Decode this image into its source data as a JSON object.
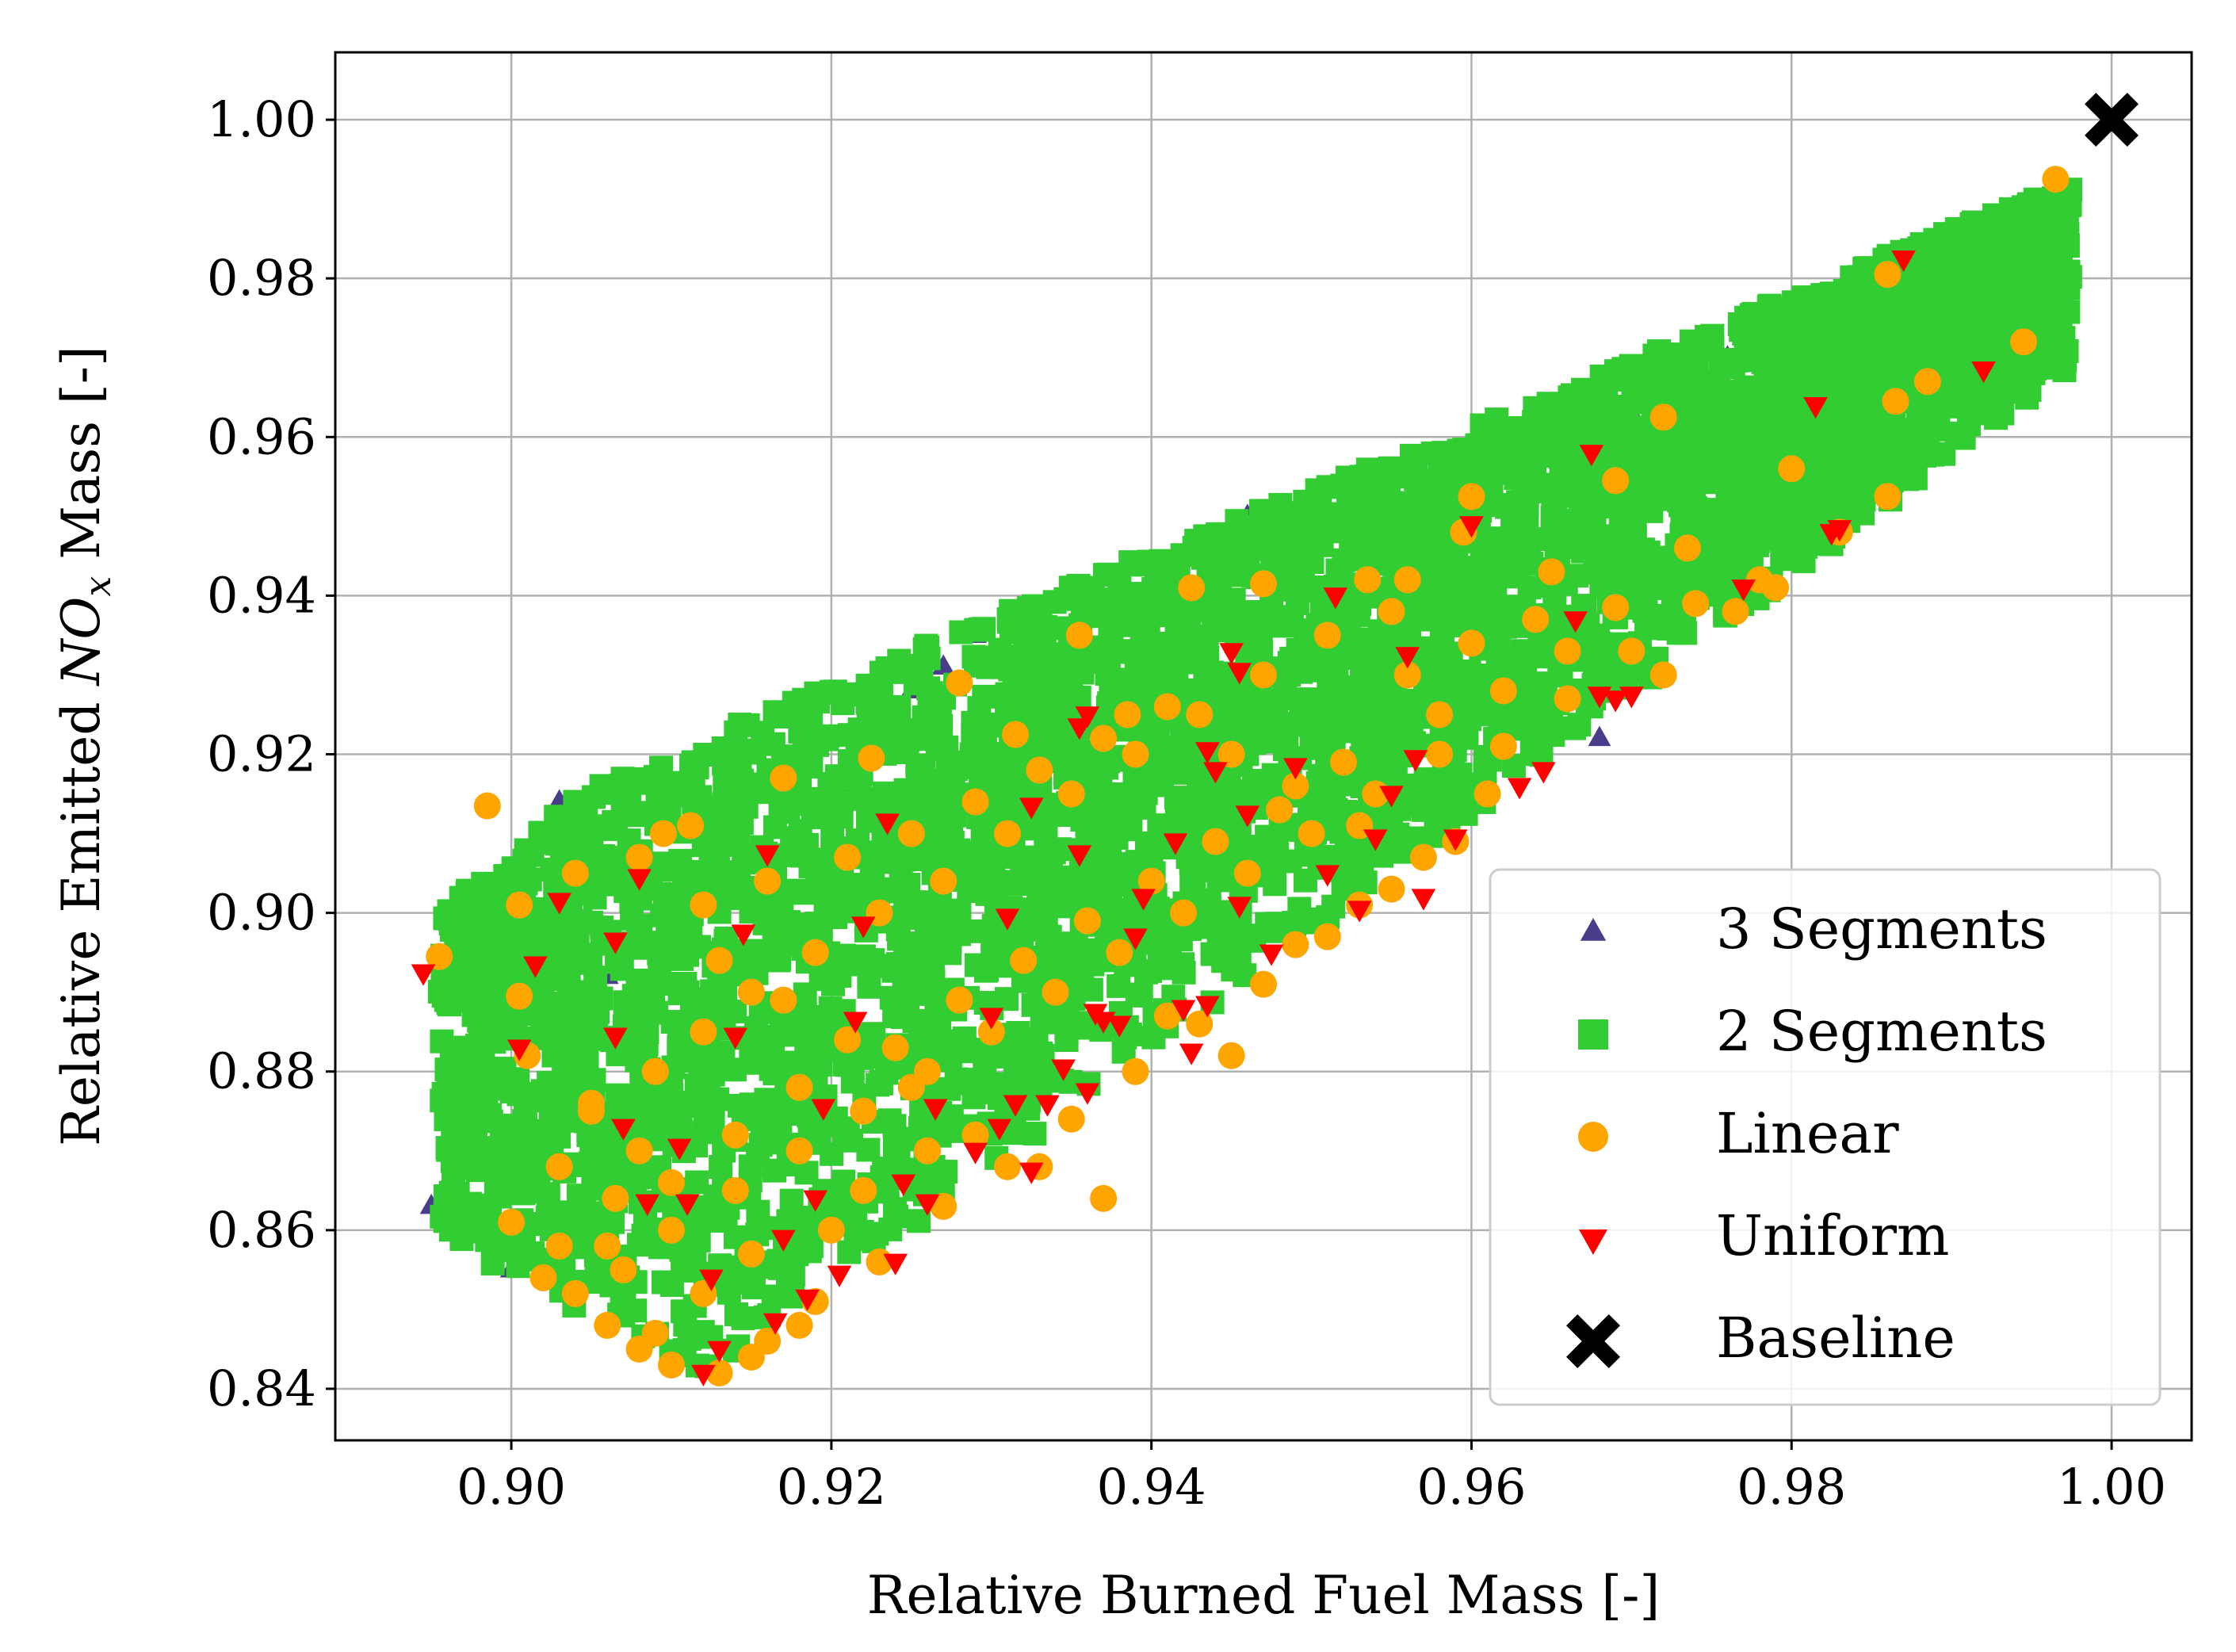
{
  "chart_data": {
    "type": "scatter",
    "title": "",
    "xlabel": "Relative Burned Fuel Mass [-]",
    "ylabel_parts": {
      "pre": "Relative Emitted ",
      "sym": "NO",
      "sub": "x",
      "post": " Mass [-]"
    },
    "xlim": [
      0.889,
      1.005
    ],
    "ylim": [
      0.8335,
      1.0085
    ],
    "xticks": [
      0.9,
      0.92,
      0.94,
      0.96,
      0.98,
      1.0
    ],
    "yticks": [
      0.84,
      0.86,
      0.88,
      0.9,
      0.92,
      0.94,
      0.96,
      0.98,
      1.0
    ],
    "xtick_labels": [
      "0.90",
      "0.92",
      "0.94",
      "0.96",
      "0.98",
      "1.00"
    ],
    "ytick_labels": [
      "0.84",
      "0.86",
      "0.88",
      "0.90",
      "0.92",
      "0.94",
      "0.96",
      "0.98",
      "1.00"
    ],
    "grid": true,
    "legend_position": "lower-right",
    "series": [
      {
        "name": "3 Segments",
        "marker": "triangle-up",
        "color": "#483d8b",
        "points": [
          [
            0.895,
            0.863
          ],
          [
            0.896,
            0.866
          ],
          [
            0.899,
            0.861
          ],
          [
            0.9,
            0.855
          ],
          [
            0.903,
            0.914
          ],
          [
            0.905,
            0.905
          ],
          [
            0.906,
            0.892
          ],
          [
            0.908,
            0.846
          ],
          [
            0.914,
            0.922
          ],
          [
            0.917,
            0.915
          ],
          [
            0.925,
            0.928
          ],
          [
            0.927,
            0.931
          ],
          [
            0.929,
            0.935
          ],
          [
            0.933,
            0.936
          ],
          [
            0.939,
            0.94
          ],
          [
            0.944,
            0.944
          ],
          [
            0.948,
            0.948
          ],
          [
            0.953,
            0.95
          ],
          [
            0.957,
            0.952
          ],
          [
            0.962,
            0.956
          ],
          [
            0.966,
            0.961
          ],
          [
            0.97,
            0.963
          ],
          [
            0.974,
            0.955
          ],
          [
            0.977,
            0.957
          ],
          [
            0.981,
            0.963
          ],
          [
            0.983,
            0.961
          ],
          [
            0.986,
            0.975
          ],
          [
            0.988,
            0.965
          ],
          [
            0.992,
            0.968
          ],
          [
            0.985,
            0.978
          ],
          [
            0.968,
            0.922
          ],
          [
            0.946,
            0.95
          ],
          [
            0.937,
            0.938
          ],
          [
            0.976,
            0.97
          ],
          [
            0.96,
            0.958
          ]
        ]
      },
      {
        "name": "2 Segments",
        "marker": "square",
        "color": "#32cd32",
        "points": []
      },
      {
        "name": "Linear",
        "marker": "circle",
        "color": "#ffa500",
        "points": [
          [
            0.8985,
            0.9135
          ],
          [
            0.8955,
            0.8945
          ],
          [
            0.9005,
            0.8895
          ],
          [
            0.905,
            0.876
          ],
          [
            0.9095,
            0.91
          ],
          [
            0.9112,
            0.911
          ],
          [
            0.917,
            0.917
          ],
          [
            0.9225,
            0.9195
          ],
          [
            0.928,
            0.929
          ],
          [
            0.9315,
            0.9225
          ],
          [
            0.9355,
            0.935
          ],
          [
            0.9385,
            0.925
          ],
          [
            0.9425,
            0.941
          ],
          [
            0.947,
            0.9415
          ],
          [
            0.9535,
            0.942
          ],
          [
            0.956,
            0.942
          ],
          [
            0.96,
            0.9525
          ],
          [
            0.9595,
            0.948
          ],
          [
            0.965,
            0.943
          ],
          [
            0.969,
            0.9545
          ],
          [
            0.972,
            0.9625
          ],
          [
            0.9735,
            0.946
          ],
          [
            0.979,
            0.941
          ],
          [
            0.98,
            0.956
          ],
          [
            0.986,
            0.9805
          ],
          [
            0.9865,
            0.9645
          ],
          [
            0.9885,
            0.967
          ],
          [
            0.9945,
            0.972
          ],
          [
            0.9965,
            0.9925
          ],
          [
            0.986,
            0.9525
          ],
          [
            0.983,
            0.948
          ],
          [
            0.969,
            0.9385
          ],
          [
            0.972,
            0.93
          ],
          [
            0.9765,
            0.938
          ],
          [
            0.966,
            0.933
          ],
          [
            0.962,
            0.928
          ],
          [
            0.958,
            0.92
          ],
          [
            0.954,
            0.915
          ],
          [
            0.95,
            0.91
          ],
          [
            0.946,
            0.905
          ],
          [
            0.942,
            0.9
          ],
          [
            0.938,
            0.895
          ],
          [
            0.934,
            0.89
          ],
          [
            0.93,
            0.885
          ],
          [
            0.926,
            0.88
          ],
          [
            0.922,
            0.875
          ],
          [
            0.918,
            0.87
          ],
          [
            0.914,
            0.865
          ],
          [
            0.91,
            0.86
          ],
          [
            0.907,
            0.855
          ],
          [
            0.904,
            0.852
          ],
          [
            0.903,
            0.858
          ],
          [
            0.9065,
            0.864
          ],
          [
            0.908,
            0.87
          ],
          [
            0.909,
            0.88
          ],
          [
            0.912,
            0.885
          ],
          [
            0.915,
            0.89
          ],
          [
            0.919,
            0.895
          ],
          [
            0.923,
            0.9
          ],
          [
            0.927,
            0.904
          ],
          [
            0.931,
            0.91
          ],
          [
            0.935,
            0.915
          ],
          [
            0.939,
            0.92
          ],
          [
            0.943,
            0.925
          ],
          [
            0.947,
            0.93
          ],
          [
            0.951,
            0.935
          ],
          [
            0.955,
            0.938
          ],
          [
            0.956,
            0.93
          ],
          [
            0.96,
            0.934
          ],
          [
            0.964,
            0.937
          ],
          [
            0.908,
            0.845
          ],
          [
            0.91,
            0.843
          ],
          [
            0.913,
            0.842
          ],
          [
            0.916,
            0.846
          ],
          [
            0.919,
            0.851
          ],
          [
            0.923,
            0.856
          ],
          [
            0.927,
            0.863
          ],
          [
            0.931,
            0.868
          ],
          [
            0.935,
            0.874
          ],
          [
            0.939,
            0.88
          ],
          [
            0.943,
            0.886
          ],
          [
            0.947,
            0.891
          ],
          [
            0.951,
            0.897
          ],
          [
            0.955,
            0.903
          ],
          [
            0.959,
            0.909
          ],
          [
            0.961,
            0.915
          ],
          [
            0.903,
            0.868
          ],
          [
            0.905,
            0.875
          ],
          [
            0.901,
            0.882
          ],
          [
            0.9005,
            0.901
          ],
          [
            0.904,
            0.905
          ],
          [
            0.908,
            0.907
          ],
          [
            0.912,
            0.901
          ],
          [
            0.916,
            0.904
          ],
          [
            0.921,
            0.907
          ],
          [
            0.925,
            0.91
          ],
          [
            0.929,
            0.914
          ],
          [
            0.933,
            0.918
          ],
          [
            0.937,
            0.922
          ],
          [
            0.941,
            0.926
          ],
          [
            0.945,
            0.92
          ],
          [
            0.949,
            0.916
          ],
          [
            0.953,
            0.911
          ],
          [
            0.957,
            0.907
          ],
          [
            0.913,
            0.894
          ],
          [
            0.917,
            0.889
          ],
          [
            0.921,
            0.884
          ],
          [
            0.925,
            0.878
          ],
          [
            0.929,
            0.872
          ],
          [
            0.933,
            0.868
          ],
          [
            0.937,
            0.864
          ],
          [
            0.941,
            0.887
          ],
          [
            0.945,
            0.882
          ],
          [
            0.949,
            0.896
          ],
          [
            0.953,
            0.901
          ],
          [
            0.92,
            0.86
          ],
          [
            0.915,
            0.857
          ],
          [
            0.912,
            0.852
          ],
          [
            0.922,
            0.865
          ],
          [
            0.926,
            0.87
          ],
          [
            0.906,
            0.858
          ],
          [
            0.91,
            0.866
          ],
          [
            0.914,
            0.872
          ],
          [
            0.918,
            0.878
          ],
          [
            0.924,
            0.883
          ],
          [
            0.928,
            0.889
          ],
          [
            0.932,
            0.894
          ],
          [
            0.936,
            0.899
          ],
          [
            0.94,
            0.904
          ],
          [
            0.944,
            0.909
          ],
          [
            0.948,
            0.913
          ],
          [
            0.952,
            0.919
          ],
          [
            0.958,
            0.925
          ],
          [
            0.962,
            0.921
          ],
          [
            0.966,
            0.927
          ],
          [
            0.97,
            0.933
          ],
          [
            0.974,
            0.939
          ],
          [
            0.978,
            0.942
          ],
          [
            0.9,
            0.861
          ],
          [
            0.902,
            0.854
          ],
          [
            0.906,
            0.848
          ],
          [
            0.909,
            0.847
          ],
          [
            0.915,
            0.844
          ],
          [
            0.918,
            0.848
          ]
        ]
      },
      {
        "name": "Uniform",
        "marker": "triangle-down",
        "color": "#ff0000",
        "points": [
          [
            0.8945,
            0.8925
          ],
          [
            0.9015,
            0.8935
          ],
          [
            0.903,
            0.9015
          ],
          [
            0.9065,
            0.8965
          ],
          [
            0.908,
            0.9045
          ],
          [
            0.9005,
            0.883
          ],
          [
            0.9065,
            0.8845
          ],
          [
            0.907,
            0.873
          ],
          [
            0.9085,
            0.8635
          ],
          [
            0.9105,
            0.8705
          ],
          [
            0.911,
            0.8635
          ],
          [
            0.9125,
            0.854
          ],
          [
            0.914,
            0.8845
          ],
          [
            0.9145,
            0.8975
          ],
          [
            0.916,
            0.9075
          ],
          [
            0.9165,
            0.8485
          ],
          [
            0.917,
            0.859
          ],
          [
            0.9185,
            0.8515
          ],
          [
            0.919,
            0.864
          ],
          [
            0.9195,
            0.8755
          ],
          [
            0.9205,
            0.8545
          ],
          [
            0.9215,
            0.8865
          ],
          [
            0.922,
            0.8985
          ],
          [
            0.9235,
            0.9115
          ],
          [
            0.924,
            0.856
          ],
          [
            0.9245,
            0.866
          ],
          [
            0.926,
            0.8635
          ],
          [
            0.9265,
            0.8755
          ],
          [
            0.929,
            0.87
          ],
          [
            0.93,
            0.887
          ],
          [
            0.9305,
            0.873
          ],
          [
            0.931,
            0.8995
          ],
          [
            0.9315,
            0.876
          ],
          [
            0.9325,
            0.8675
          ],
          [
            0.9335,
            0.876
          ],
          [
            0.9325,
            0.9135
          ],
          [
            0.9345,
            0.8805
          ],
          [
            0.9355,
            0.9075
          ],
          [
            0.936,
            0.8775
          ],
          [
            0.9365,
            0.8875
          ],
          [
            0.937,
            0.8865
          ],
          [
            0.9355,
            0.9235
          ],
          [
            0.936,
            0.925
          ],
          [
            0.938,
            0.886
          ],
          [
            0.939,
            0.897
          ],
          [
            0.9395,
            0.902
          ],
          [
            0.9415,
            0.909
          ],
          [
            0.942,
            0.888
          ],
          [
            0.9425,
            0.8825
          ],
          [
            0.9435,
            0.8885
          ],
          [
            0.944,
            0.918
          ],
          [
            0.9435,
            0.9205
          ],
          [
            0.945,
            0.933
          ],
          [
            0.9455,
            0.9305
          ],
          [
            0.9455,
            0.901
          ],
          [
            0.946,
            0.9125
          ],
          [
            0.9475,
            0.895
          ],
          [
            0.949,
            0.9185
          ],
          [
            0.951,
            0.905
          ],
          [
            0.9515,
            0.94
          ],
          [
            0.953,
            0.9005
          ],
          [
            0.954,
            0.9095
          ],
          [
            0.955,
            0.915
          ],
          [
            0.956,
            0.9325
          ],
          [
            0.9565,
            0.9195
          ],
          [
            0.957,
            0.902
          ],
          [
            0.959,
            0.9095
          ],
          [
            0.96,
            0.949
          ],
          [
            0.963,
            0.916
          ],
          [
            0.9645,
            0.918
          ],
          [
            0.9665,
            0.937
          ],
          [
            0.9675,
            0.958
          ],
          [
            0.968,
            0.9275
          ],
          [
            0.969,
            0.927
          ],
          [
            0.97,
            0.9275
          ],
          [
            0.977,
            0.941
          ],
          [
            0.9815,
            0.964
          ],
          [
            0.9825,
            0.948
          ],
          [
            0.983,
            0.9485
          ],
          [
            0.987,
            0.9825
          ],
          [
            0.992,
            0.9685
          ],
          [
            0.912,
            0.842
          ],
          [
            0.913,
            0.845
          ]
        ]
      },
      {
        "name": "Baseline",
        "marker": "x",
        "color": "#000000",
        "points": [
          [
            1.0,
            1.0
          ]
        ]
      }
    ]
  }
}
